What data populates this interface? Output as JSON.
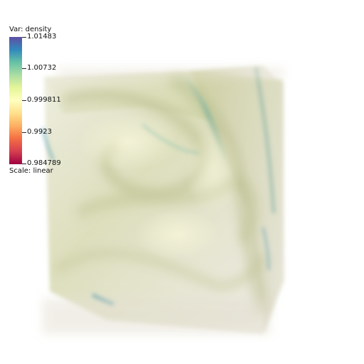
{
  "legend": {
    "title": "Var: density",
    "scale_label": "Scale: linear",
    "ticks": [
      "1.01483",
      "1.00732",
      "0.999811",
      "0.9923",
      "0.984789"
    ],
    "colors": [
      "#5e4fa2",
      "#3288bd",
      "#66c2a5",
      "#abdda4",
      "#e6f598",
      "#ffffbf",
      "#fee08b",
      "#fdae61",
      "#f46d43",
      "#d53e4f",
      "#9e0142"
    ]
  },
  "volume": {
    "variable": "density",
    "palette": "spectral"
  }
}
